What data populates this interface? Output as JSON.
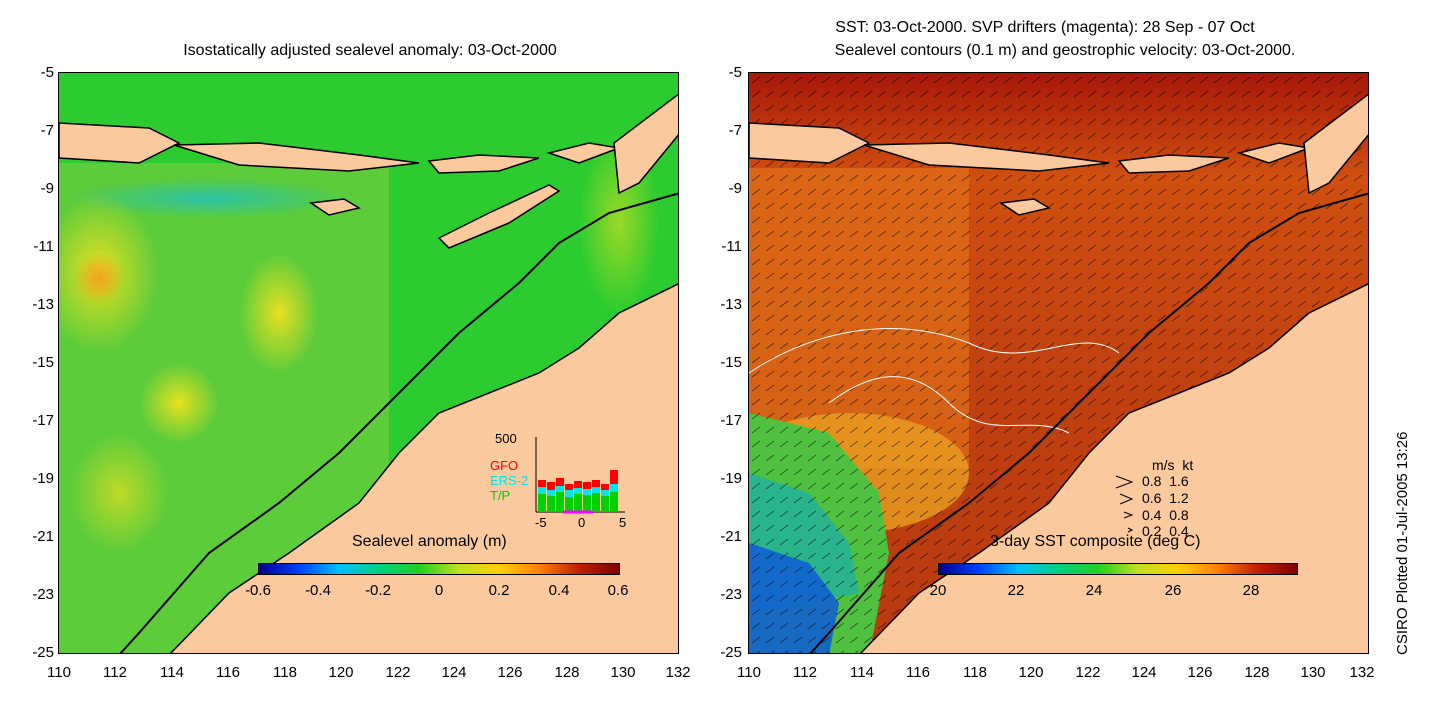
{
  "left_panel": {
    "title": "Isostatically adjusted sealevel anomaly: 03-Oct-2000",
    "y_ticks": [
      "-5",
      "-7",
      "-9",
      "-11",
      "-13",
      "-15",
      "-17",
      "-19",
      "-21",
      "-23",
      "-25"
    ],
    "x_ticks": [
      "110",
      "112",
      "114",
      "116",
      "118",
      "120",
      "122",
      "124",
      "126",
      "128",
      "130",
      "132"
    ],
    "colorbar": {
      "title": "Sealevel anomaly (m)",
      "labels": [
        "-0.6",
        "-0.4",
        "-0.2",
        "0",
        "0.2",
        "0.4",
        "0.6"
      ]
    },
    "inset": {
      "y_label": "500",
      "x_labels": [
        "-5",
        "0",
        "5"
      ],
      "legend": [
        {
          "name": "GFO",
          "color": "#ff0000"
        },
        {
          "name": "ERS-2",
          "color": "#00e5e5"
        },
        {
          "name": "T/P",
          "color": "#00d000"
        }
      ]
    }
  },
  "right_panel": {
    "title_line1": "SST: 03-Oct-2000. SVP drifters (magenta): 28 Sep - 07 Oct",
    "title_line2": "Sealevel contours (0.1 m) and geostrophic velocity: 03-Oct-2000.",
    "y_ticks": [
      "-5",
      "-7",
      "-9",
      "-11",
      "-13",
      "-15",
      "-17",
      "-19",
      "-21",
      "-23",
      "-25"
    ],
    "x_ticks": [
      "110",
      "112",
      "114",
      "116",
      "118",
      "120",
      "122",
      "124",
      "126",
      "128",
      "130",
      "132"
    ],
    "colorbar": {
      "title": "3-day SST composite (deg C)",
      "labels": [
        "20",
        "22",
        "24",
        "26",
        "28"
      ]
    },
    "velocity_legend": {
      "header": "m/s  kt",
      "rows": [
        "0.8  1.6",
        "0.6  1.2",
        "0.4  0.8",
        "0.2  0.4"
      ]
    }
  },
  "footer": {
    "credit": "CSIRO Plotted 01-Jul-2005 13:26"
  },
  "colors": {
    "land": "#fbc99e",
    "ocean_left": "#22cc22",
    "ocean_right": "#b83a10"
  }
}
